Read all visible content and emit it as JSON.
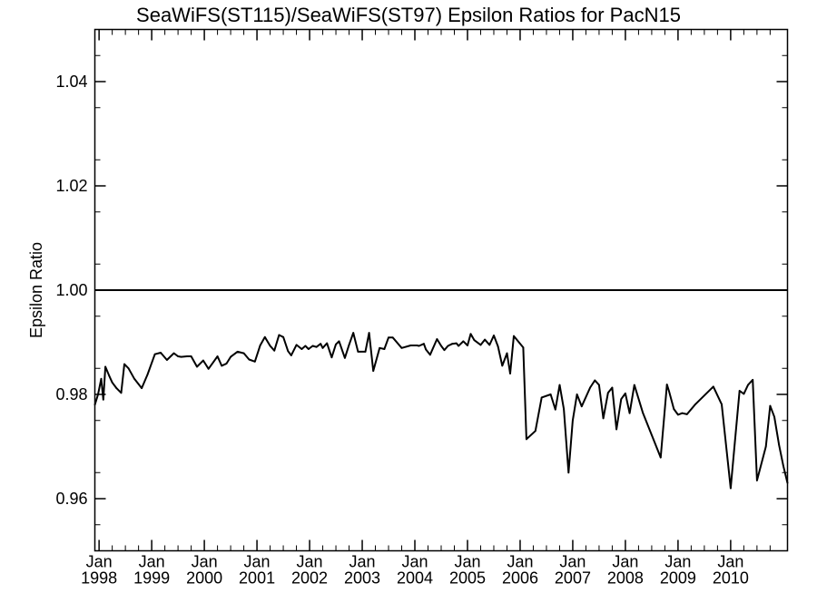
{
  "chart_data": {
    "type": "line",
    "title": "SeaWiFS(ST115)/SeaWiFS(ST97)  Epsilon Ratios for PacN15",
    "xlabel": "",
    "ylabel": "Epsilon Ratio",
    "xlim": [
      1997.92,
      2011.08
    ],
    "ylim": [
      0.95,
      1.05
    ],
    "yticks": [
      {
        "value": 0.96,
        "label": "0.96"
      },
      {
        "value": 0.98,
        "label": "0.98"
      },
      {
        "value": 1.0,
        "label": "1.00"
      },
      {
        "value": 1.02,
        "label": "1.02"
      },
      {
        "value": 1.04,
        "label": "1.04"
      }
    ],
    "xticks": [
      {
        "value": 1998,
        "month": "Jan",
        "year": "1998"
      },
      {
        "value": 1999,
        "month": "Jan",
        "year": "1999"
      },
      {
        "value": 2000,
        "month": "Jan",
        "year": "2000"
      },
      {
        "value": 2001,
        "month": "Jan",
        "year": "2001"
      },
      {
        "value": 2002,
        "month": "Jan",
        "year": "2002"
      },
      {
        "value": 2003,
        "month": "Jan",
        "year": "2003"
      },
      {
        "value": 2004,
        "month": "Jan",
        "year": "2004"
      },
      {
        "value": 2005,
        "month": "Jan",
        "year": "2005"
      },
      {
        "value": 2006,
        "month": "Jan",
        "year": "2006"
      },
      {
        "value": 2007,
        "month": "Jan",
        "year": "2007"
      },
      {
        "value": 2008,
        "month": "Jan",
        "year": "2008"
      },
      {
        "value": 2009,
        "month": "Jan",
        "year": "2009"
      },
      {
        "value": 2010,
        "month": "Jan",
        "year": "2010"
      }
    ],
    "reference_line": 1.0,
    "grid": false,
    "series": [
      {
        "x": [
          1997.92,
          1997.98,
          1998.04,
          1998.08,
          1998.12,
          1998.19,
          1998.25,
          1998.33,
          1998.42,
          1998.48,
          1998.56,
          1998.67,
          1998.81,
          1998.92,
          1999.06,
          1999.17,
          1999.29,
          1999.42,
          1999.5,
          1999.56,
          1999.67,
          1999.75,
          1999.86,
          1999.98,
          2000.08,
          2000.17,
          2000.25,
          2000.33,
          2000.42,
          2000.5,
          2000.63,
          2000.75,
          2000.85,
          2000.96,
          2001.06,
          2001.15,
          2001.25,
          2001.33,
          2001.42,
          2001.5,
          2001.59,
          2001.65,
          2001.75,
          2001.85,
          2001.92,
          2001.98,
          2002.06,
          2002.13,
          2002.21,
          2002.25,
          2002.33,
          2002.42,
          2002.5,
          2002.56,
          2002.67,
          2002.75,
          2002.83,
          2002.92,
          2002.96,
          2003.06,
          2003.13,
          2003.21,
          2003.33,
          2003.42,
          2003.5,
          2003.58,
          2003.75,
          2003.92,
          2004.04,
          2004.08,
          2004.17,
          2004.21,
          2004.29,
          2004.42,
          2004.5,
          2004.56,
          2004.63,
          2004.71,
          2004.79,
          2004.83,
          2004.92,
          2005.0,
          2005.06,
          2005.13,
          2005.25,
          2005.33,
          2005.42,
          2005.5,
          2005.58,
          2005.66,
          2005.75,
          2005.81,
          2005.88,
          2006.06,
          2006.12,
          2006.29,
          2006.41,
          2006.58,
          2006.67,
          2006.75,
          2006.83,
          2006.92,
          2007.0,
          2007.08,
          2007.17,
          2007.33,
          2007.42,
          2007.5,
          2007.58,
          2007.67,
          2007.75,
          2007.83,
          2007.92,
          2008.0,
          2008.08,
          2008.17,
          2008.33,
          2008.67,
          2008.79,
          2008.83,
          2008.92,
          2009.0,
          2009.08,
          2009.17,
          2009.33,
          2009.67,
          2009.83,
          2010.0,
          2010.08,
          2010.17,
          2010.25,
          2010.33,
          2010.42,
          2010.5,
          2010.67,
          2010.75,
          2010.83,
          2010.92,
          2011.0,
          2011.08
        ],
        "values": [
          0.978,
          0.98,
          0.983,
          0.979,
          0.9853,
          0.9836,
          0.9823,
          0.9812,
          0.9803,
          0.9858,
          0.985,
          0.983,
          0.9812,
          0.9838,
          0.9877,
          0.988,
          0.9866,
          0.9879,
          0.9873,
          0.9872,
          0.9873,
          0.9873,
          0.9853,
          0.9865,
          0.9849,
          0.9862,
          0.9873,
          0.9855,
          0.9859,
          0.9872,
          0.9882,
          0.9879,
          0.9867,
          0.9863,
          0.9894,
          0.991,
          0.9893,
          0.9884,
          0.9914,
          0.991,
          0.9883,
          0.9875,
          0.9895,
          0.9887,
          0.9893,
          0.9887,
          0.9893,
          0.9891,
          0.9897,
          0.9889,
          0.9898,
          0.9871,
          0.9896,
          0.9902,
          0.987,
          0.9895,
          0.9918,
          0.9882,
          0.9882,
          0.9882,
          0.9918,
          0.9845,
          0.9889,
          0.9887,
          0.9909,
          0.9909,
          0.9889,
          0.9894,
          0.9894,
          0.9893,
          0.9897,
          0.9886,
          0.9876,
          0.9906,
          0.9893,
          0.9885,
          0.9893,
          0.9897,
          0.9898,
          0.9893,
          0.9902,
          0.9894,
          0.9916,
          0.9904,
          0.9895,
          0.9905,
          0.9895,
          0.9913,
          0.9892,
          0.9855,
          0.9879,
          0.984,
          0.9912,
          0.989,
          0.9714,
          0.973,
          0.9794,
          0.98,
          0.9771,
          0.9818,
          0.9772,
          0.965,
          0.975,
          0.98,
          0.9777,
          0.9813,
          0.9827,
          0.9818,
          0.9754,
          0.9803,
          0.9813,
          0.9733,
          0.9791,
          0.9802,
          0.9764,
          0.9818,
          0.9765,
          0.9679,
          0.9819,
          0.9806,
          0.9772,
          0.9761,
          0.9764,
          0.9762,
          0.9781,
          0.9815,
          0.9781,
          0.962,
          0.9708,
          0.9807,
          0.9801,
          0.9818,
          0.9828,
          0.9635,
          0.97,
          0.9778,
          0.9757,
          0.9703,
          0.9663,
          0.963
        ]
      }
    ]
  }
}
